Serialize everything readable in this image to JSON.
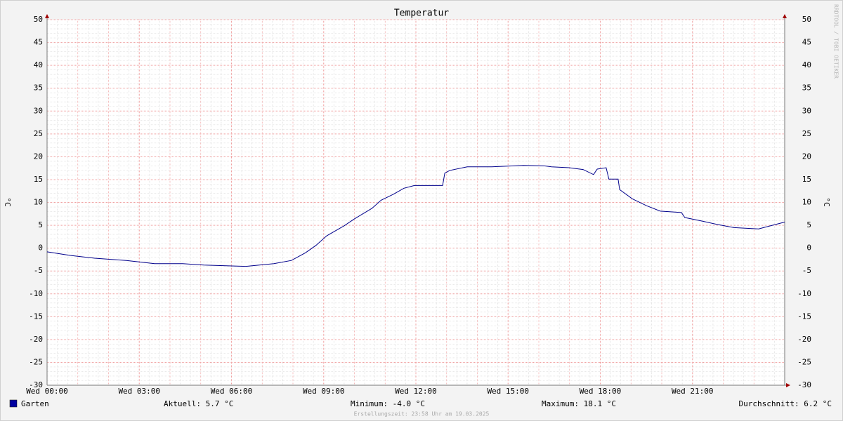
{
  "chart_data": {
    "type": "line",
    "title": "Temperatur",
    "y_label": "°C",
    "watermark": "RRDTOOL / TOBI OETIKER",
    "x": [
      0,
      0.75,
      1.55,
      2.58,
      3.5,
      4.41,
      5.1,
      6.0,
      6.47,
      7.38,
      7.95,
      8.41,
      8.75,
      9.1,
      9.67,
      10.0,
      10.57,
      10.87,
      11.27,
      11.61,
      11.95,
      12.87,
      12.94,
      13.1,
      13.67,
      14.47,
      15.5,
      16.18,
      16.41,
      16.98,
      17.44,
      17.78,
      17.9,
      18.19,
      18.28,
      18.58,
      18.63,
      19.04,
      19.5,
      19.95,
      20.64,
      20.75,
      21.33,
      21.79,
      22.35,
      23.15,
      24
    ],
    "series": [
      {
        "name": "Garten",
        "color": "#00008b",
        "values": [
          -0.8,
          -1.6,
          -2.2,
          -2.7,
          -3.4,
          -3.4,
          -3.7,
          -3.9,
          -4.0,
          -3.4,
          -2.7,
          -1.0,
          0.6,
          2.7,
          4.9,
          6.4,
          8.7,
          10.5,
          11.8,
          13.1,
          13.7,
          13.7,
          16.4,
          17.0,
          17.8,
          17.8,
          18.1,
          18.0,
          17.8,
          17.6,
          17.2,
          16.1,
          17.3,
          17.6,
          15.1,
          15.1,
          12.8,
          10.8,
          9.3,
          8.1,
          7.8,
          6.7,
          5.9,
          5.2,
          4.5,
          4.2,
          5.7
        ]
      }
    ],
    "stats": [
      "Aktuell: 5.7 °C",
      "Minimum: -4.0 °C",
      "Maximum: 18.1 °C",
      "Durchschnitt: 6.2 °C"
    ],
    "footer": "Erstellungszeit: 23:58 Uhr am 19.03.2025",
    "xlim": [
      0,
      24
    ],
    "xticks": [
      {
        "value": 0,
        "label": "Wed 00:00"
      },
      {
        "value": 3,
        "label": "Wed 03:00"
      },
      {
        "value": 6,
        "label": "Wed 06:00"
      },
      {
        "value": 9,
        "label": "Wed 09:00"
      },
      {
        "value": 12,
        "label": "Wed 12:00"
      },
      {
        "value": 15,
        "label": "Wed 15:00"
      },
      {
        "value": 18,
        "label": "Wed 18:00"
      },
      {
        "value": 21,
        "label": "Wed 21:00"
      }
    ],
    "ylim": [
      -30,
      50
    ],
    "yticks": [
      -30,
      -25,
      -20,
      -15,
      -10,
      -5,
      0,
      5,
      10,
      15,
      20,
      25,
      30,
      35,
      40,
      45,
      50
    ],
    "grid": true
  }
}
